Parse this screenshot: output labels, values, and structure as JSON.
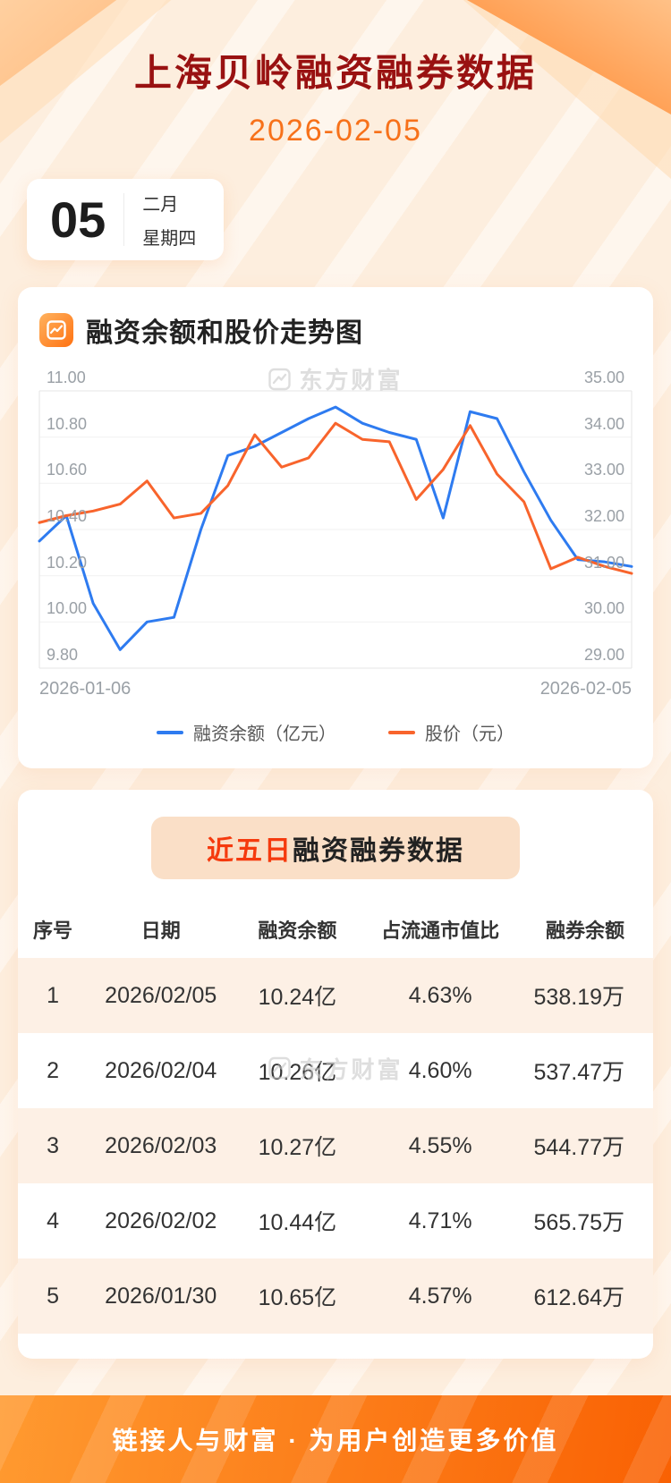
{
  "page": {
    "title": "上海贝岭融资融券数据",
    "date": "2026-02-05",
    "date_badge": {
      "day": "05",
      "month": "二月",
      "weekday": "星期四"
    },
    "watermark": "东方财富",
    "footer": "链接人与财富 · 为用户创造更多价值"
  },
  "chart_section": {
    "title": "融资余额和股价走势图"
  },
  "chart_data": {
    "type": "line",
    "title": "融资余额和股价走势图",
    "x_start_label": "2026-01-06",
    "x_end_label": "2026-02-05",
    "grid": true,
    "legend_position": "bottom",
    "left_axis": {
      "label": "融资余额（亿元）",
      "min": 9.8,
      "max": 11.0,
      "ticks": [
        "11.00",
        "10.80",
        "10.60",
        "10.40",
        "10.20",
        "10.00",
        "9.80"
      ]
    },
    "right_axis": {
      "label": "股价（元）",
      "min": 29.0,
      "max": 35.0,
      "ticks": [
        "35.00",
        "34.00",
        "33.00",
        "32.00",
        "31.00",
        "30.00",
        "29.00"
      ]
    },
    "series": [
      {
        "name": "融资余额（亿元）",
        "axis": "left",
        "color": "#2e7bf0",
        "values": [
          10.35,
          10.46,
          10.08,
          9.88,
          10.0,
          10.02,
          10.4,
          10.72,
          10.76,
          10.82,
          10.88,
          10.93,
          10.86,
          10.82,
          10.79,
          10.45,
          10.91,
          10.88,
          10.65,
          10.44,
          10.27,
          10.26,
          10.24
        ]
      },
      {
        "name": "股价（元）",
        "axis": "right",
        "color": "#f8642c",
        "values": [
          32.15,
          32.3,
          32.4,
          32.55,
          33.05,
          32.25,
          32.35,
          32.95,
          34.05,
          33.35,
          33.55,
          34.3,
          33.95,
          33.9,
          32.65,
          33.3,
          34.25,
          33.2,
          32.6,
          31.15,
          31.4,
          31.2,
          31.05
        ]
      }
    ]
  },
  "table_section": {
    "title_highlight": "近五日",
    "title_rest": "融资融券数据",
    "headers": [
      "序号",
      "日期",
      "融资余额",
      "占流通市值比",
      "融券余额"
    ],
    "rows": [
      [
        "1",
        "2026/02/05",
        "10.24亿",
        "4.63%",
        "538.19万"
      ],
      [
        "2",
        "2026/02/04",
        "10.26亿",
        "4.60%",
        "537.47万"
      ],
      [
        "3",
        "2026/02/03",
        "10.27亿",
        "4.55%",
        "544.77万"
      ],
      [
        "4",
        "2026/02/02",
        "10.44亿",
        "4.71%",
        "565.75万"
      ],
      [
        "5",
        "2026/01/30",
        "10.65亿",
        "4.57%",
        "612.64万"
      ]
    ]
  },
  "colors": {
    "title_red": "#991111",
    "date_orange": "#f7711a",
    "highlight_red": "#f53a0e",
    "line_blue": "#2e7bf0",
    "line_orange": "#f8642c",
    "footer_orange": "#f96103",
    "row_alt_bg": "#fdf0e5"
  },
  "icons": {
    "section_icon": "line-chart-icon",
    "watermark_icon": "eastmoney-logo-icon"
  }
}
